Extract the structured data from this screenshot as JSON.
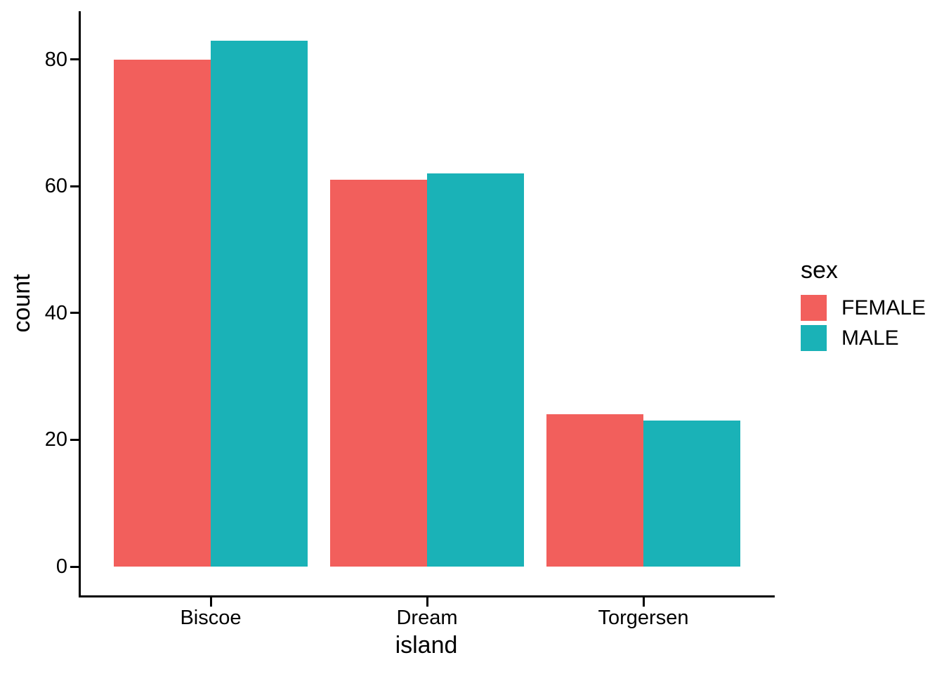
{
  "chart_data": {
    "type": "bar",
    "title": "",
    "xlabel": "island",
    "ylabel": "count",
    "categories": [
      "Biscoe",
      "Dream",
      "Torgersen"
    ],
    "series": [
      {
        "name": "FEMALE",
        "color": "#F25F5C",
        "values": [
          80,
          61,
          24
        ]
      },
      {
        "name": "MALE",
        "color": "#1AB2B7",
        "values": [
          83,
          62,
          23
        ]
      }
    ],
    "y_ticks": [
      0,
      20,
      40,
      60,
      80
    ],
    "ylim": [
      0,
      87
    ],
    "grid": false,
    "legend": {
      "title": "sex",
      "position": "right"
    },
    "axis_color": "#000000",
    "background_color": "#FFFFFF"
  }
}
